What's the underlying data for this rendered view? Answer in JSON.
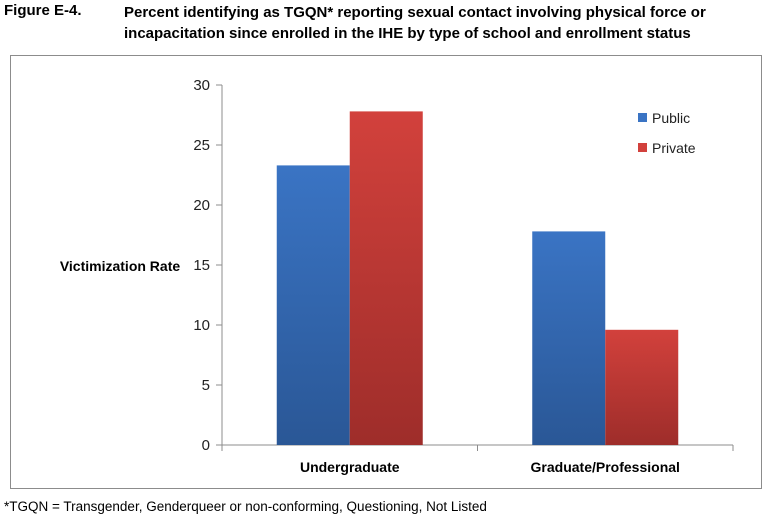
{
  "figure": {
    "label": "Figure E-4.",
    "title": "Percent identifying as TGQN* reporting sexual contact involving physical force or incapacitation since enrolled in the IHE by type of school and enrollment status"
  },
  "footnote": "*TGQN = Transgender, Genderqueer or non-conforming, Questioning, Not Listed",
  "colors": {
    "public": "#3a74c4",
    "public_dark": "#2a5796",
    "private": "#d2413c",
    "private_dark": "#9e2d2a"
  },
  "chart_data": {
    "type": "bar",
    "title": "",
    "xlabel": "",
    "ylabel": "Victimization Rate",
    "ylim": [
      0,
      30
    ],
    "yticks": [
      0,
      5,
      10,
      15,
      20,
      25,
      30
    ],
    "categories": [
      "Undergraduate",
      "Graduate/Professional"
    ],
    "series": [
      {
        "name": "Public",
        "values": [
          23.3,
          17.8
        ]
      },
      {
        "name": "Private",
        "values": [
          27.8,
          9.6
        ]
      }
    ],
    "legend_position": "top-right",
    "grid": false
  }
}
